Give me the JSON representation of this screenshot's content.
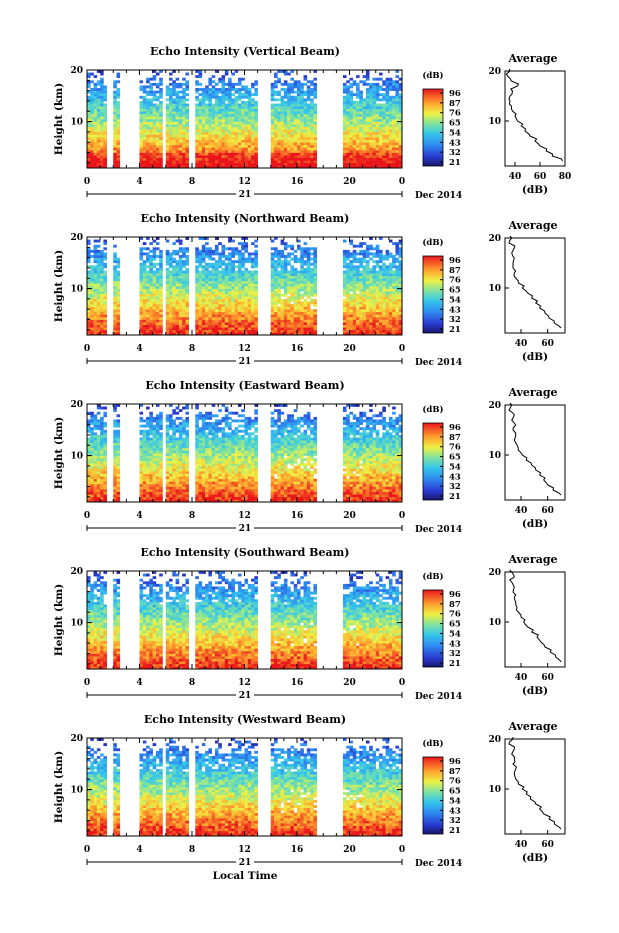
{
  "shared": {
    "xticks": [
      "0",
      "4",
      "8",
      "12",
      "16",
      "20",
      "0"
    ],
    "day_label": "21",
    "date_label": "Dec 2014",
    "xaxis_label": "Local Time",
    "colorbar_unit": "(dB)",
    "colorbar_ticks": [
      "96",
      "87",
      "76",
      "65",
      "54",
      "43",
      "32",
      "21"
    ],
    "avg_title": "Average",
    "avg_xlabel": "(dB)",
    "height_ticks": [
      "20",
      "10"
    ]
  },
  "chart_data": [
    {
      "type": "heatmap",
      "title": "Echo Intensity (Vertical Beam)",
      "ylabel": "Height (km)",
      "xlabel": "Local Time",
      "x_range_hours": [
        0,
        24
      ],
      "ylim_km": [
        1,
        20
      ],
      "colorbar_range_db": [
        21,
        96
      ],
      "colorbar_ticks": [
        96,
        87,
        76,
        65,
        54,
        43,
        32,
        21
      ],
      "profile": {
        "title": "Average",
        "xlabel": "(dB)",
        "xticks": [
          40,
          60,
          80
        ],
        "xlim": [
          32,
          80
        ],
        "ylim": [
          1,
          20
        ],
        "yticks": [
          20,
          10
        ],
        "height_km": [
          2,
          3,
          4,
          5,
          6,
          7,
          8,
          9,
          10,
          11,
          12,
          13,
          14,
          15,
          16,
          17,
          18,
          19,
          20
        ],
        "mean_db": [
          78,
          70,
          65,
          60,
          56,
          52,
          48,
          45,
          42,
          40,
          38,
          37,
          36,
          36,
          38,
          42,
          37,
          34,
          36
        ]
      }
    },
    {
      "type": "heatmap",
      "title": "Echo Intensity (Northward Beam)",
      "ylabel": "Height (km)",
      "xlabel": "Local Time",
      "x_range_hours": [
        0,
        24
      ],
      "ylim_km": [
        1,
        20
      ],
      "colorbar_range_db": [
        21,
        96
      ],
      "colorbar_ticks": [
        96,
        87,
        76,
        65,
        54,
        43,
        32,
        21
      ],
      "profile": {
        "title": "Average",
        "xlabel": "(dB)",
        "xticks": [
          40,
          60
        ],
        "xlim": [
          28,
          73
        ],
        "ylim": [
          1,
          20
        ],
        "yticks": [
          20,
          10
        ],
        "height_km": [
          2,
          3,
          4,
          5,
          6,
          7,
          8,
          9,
          10,
          11,
          12,
          13,
          14,
          15,
          16,
          17,
          18,
          19,
          20
        ],
        "mean_db": [
          70,
          65,
          61,
          58,
          54,
          51,
          48,
          45,
          41,
          38,
          36,
          35,
          34,
          34,
          35,
          33,
          35,
          31,
          33
        ]
      }
    },
    {
      "type": "heatmap",
      "title": "Echo Intensity (Eastward Beam)",
      "ylabel": "Height (km)",
      "xlabel": "Local Time",
      "x_range_hours": [
        0,
        24
      ],
      "ylim_km": [
        1,
        20
      ],
      "colorbar_range_db": [
        21,
        96
      ],
      "colorbar_ticks": [
        96,
        87,
        76,
        65,
        54,
        43,
        32,
        21
      ],
      "profile": {
        "title": "Average",
        "xlabel": "(dB)",
        "xticks": [
          40,
          60
        ],
        "xlim": [
          28,
          73
        ],
        "ylim": [
          1,
          20
        ],
        "yticks": [
          20,
          10
        ],
        "height_km": [
          2,
          3,
          4,
          5,
          6,
          7,
          8,
          9,
          10,
          11,
          12,
          13,
          14,
          15,
          16,
          17,
          18,
          19,
          20
        ],
        "mean_db": [
          70,
          64,
          60,
          57,
          54,
          51,
          48,
          44,
          41,
          38,
          37,
          35,
          36,
          34,
          36,
          33,
          35,
          31,
          33
        ]
      }
    },
    {
      "type": "heatmap",
      "title": "Echo Intensity (Southward Beam)",
      "ylabel": "Height (km)",
      "xlabel": "Local Time",
      "x_range_hours": [
        0,
        24
      ],
      "ylim_km": [
        1,
        20
      ],
      "colorbar_range_db": [
        21,
        96
      ],
      "colorbar_ticks": [
        96,
        87,
        76,
        65,
        54,
        43,
        32,
        21
      ],
      "profile": {
        "title": "Average",
        "xlabel": "(dB)",
        "xticks": [
          40,
          60
        ],
        "xlim": [
          28,
          73
        ],
        "ylim": [
          1,
          20
        ],
        "yticks": [
          20,
          10
        ],
        "height_km": [
          2,
          3,
          4,
          5,
          6,
          7,
          8,
          9,
          10,
          11,
          12,
          13,
          14,
          15,
          16,
          17,
          18,
          19,
          20
        ],
        "mean_db": [
          70,
          66,
          62,
          58,
          55,
          52,
          48,
          45,
          42,
          40,
          38,
          37,
          36,
          35,
          34,
          35,
          33,
          35,
          33
        ]
      }
    },
    {
      "type": "heatmap",
      "title": "Echo Intensity (Westward Beam)",
      "ylabel": "Height (km)",
      "xlabel": "Local Time",
      "x_range_hours": [
        0,
        24
      ],
      "ylim_km": [
        1,
        20
      ],
      "colorbar_range_db": [
        21,
        96
      ],
      "colorbar_ticks": [
        96,
        87,
        76,
        65,
        54,
        43,
        32,
        21
      ],
      "profile": {
        "title": "Average",
        "xlabel": "(dB)",
        "xticks": [
          40,
          60
        ],
        "xlim": [
          28,
          73
        ],
        "ylim": [
          1,
          20
        ],
        "yticks": [
          20,
          10
        ],
        "height_km": [
          2,
          3,
          4,
          5,
          6,
          7,
          8,
          9,
          10,
          11,
          12,
          13,
          14,
          15,
          16,
          17,
          18,
          19,
          20
        ],
        "mean_db": [
          70,
          65,
          61,
          57,
          54,
          51,
          47,
          44,
          41,
          38,
          36,
          35,
          36,
          34,
          35,
          33,
          35,
          31,
          34
        ]
      }
    }
  ]
}
